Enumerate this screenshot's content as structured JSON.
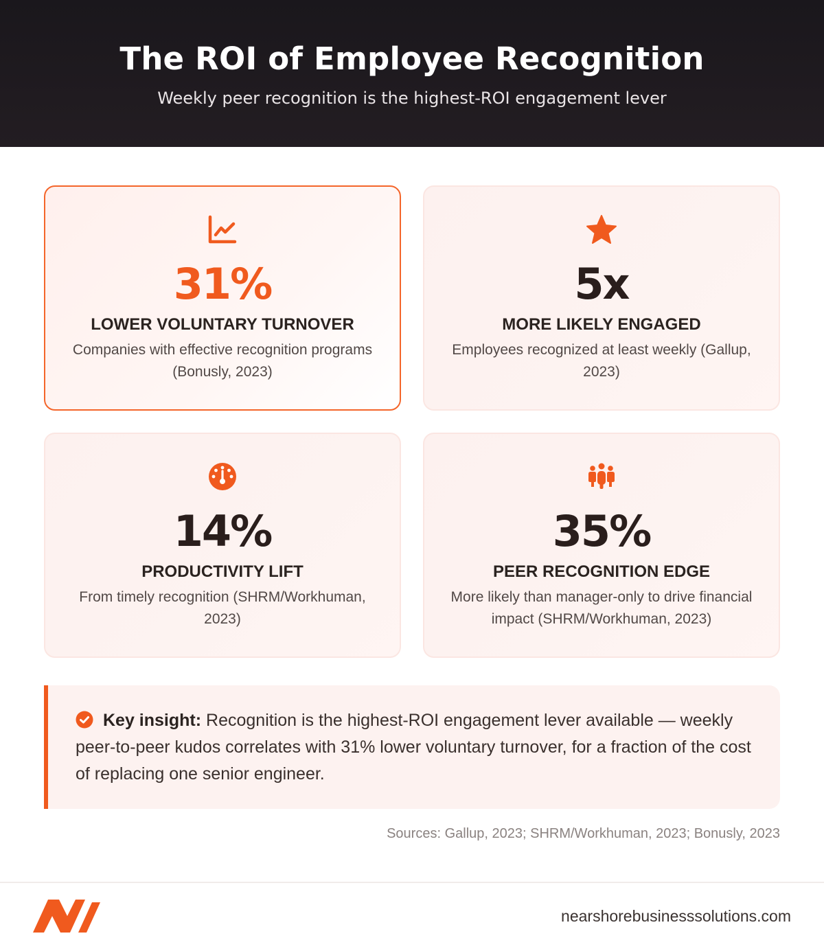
{
  "header": {
    "title": "The ROI of Employee Recognition",
    "subtitle": "Weekly peer recognition is the highest-ROI engagement lever"
  },
  "stats": [
    {
      "icon": "line-chart-icon",
      "value": "31%",
      "label": "LOWER VOLUNTARY TURNOVER",
      "description": "Companies with effective recognition programs (Bonusly, 2023)"
    },
    {
      "icon": "star-icon",
      "value": "5x",
      "label": "MORE LIKELY ENGAGED",
      "description": "Employees recognized at least weekly (Gallup, 2023)"
    },
    {
      "icon": "gauge-icon",
      "value": "14%",
      "label": "PRODUCTIVITY LIFT",
      "description": "From timely recognition (SHRM/Workhuman, 2023)"
    },
    {
      "icon": "people-group-icon",
      "value": "35%",
      "label": "PEER RECOGNITION EDGE",
      "description": "More likely than manager-only to drive financial impact (SHRM/Workhuman, 2023)"
    }
  ],
  "insight": {
    "icon": "check-circle-icon",
    "lead": "Key insight:",
    "text": " Recognition is the highest-ROI engagement lever available — weekly peer-to-peer kudos correlates with 31% lower voluntary turnover, for a fraction of the cost of replacing one senior engineer."
  },
  "sources": "Sources: Gallup, 2023; SHRM/Workhuman, 2023; Bonusly, 2023",
  "footer": {
    "logo_icon": "brand-logo-icon",
    "domain": "nearshorebusinesssolutions.com"
  },
  "colors": {
    "accent": "#f05a1e",
    "header_bg": "#1a171c",
    "card_bg": "#fdf2f0",
    "text_dark": "#2b2320"
  }
}
